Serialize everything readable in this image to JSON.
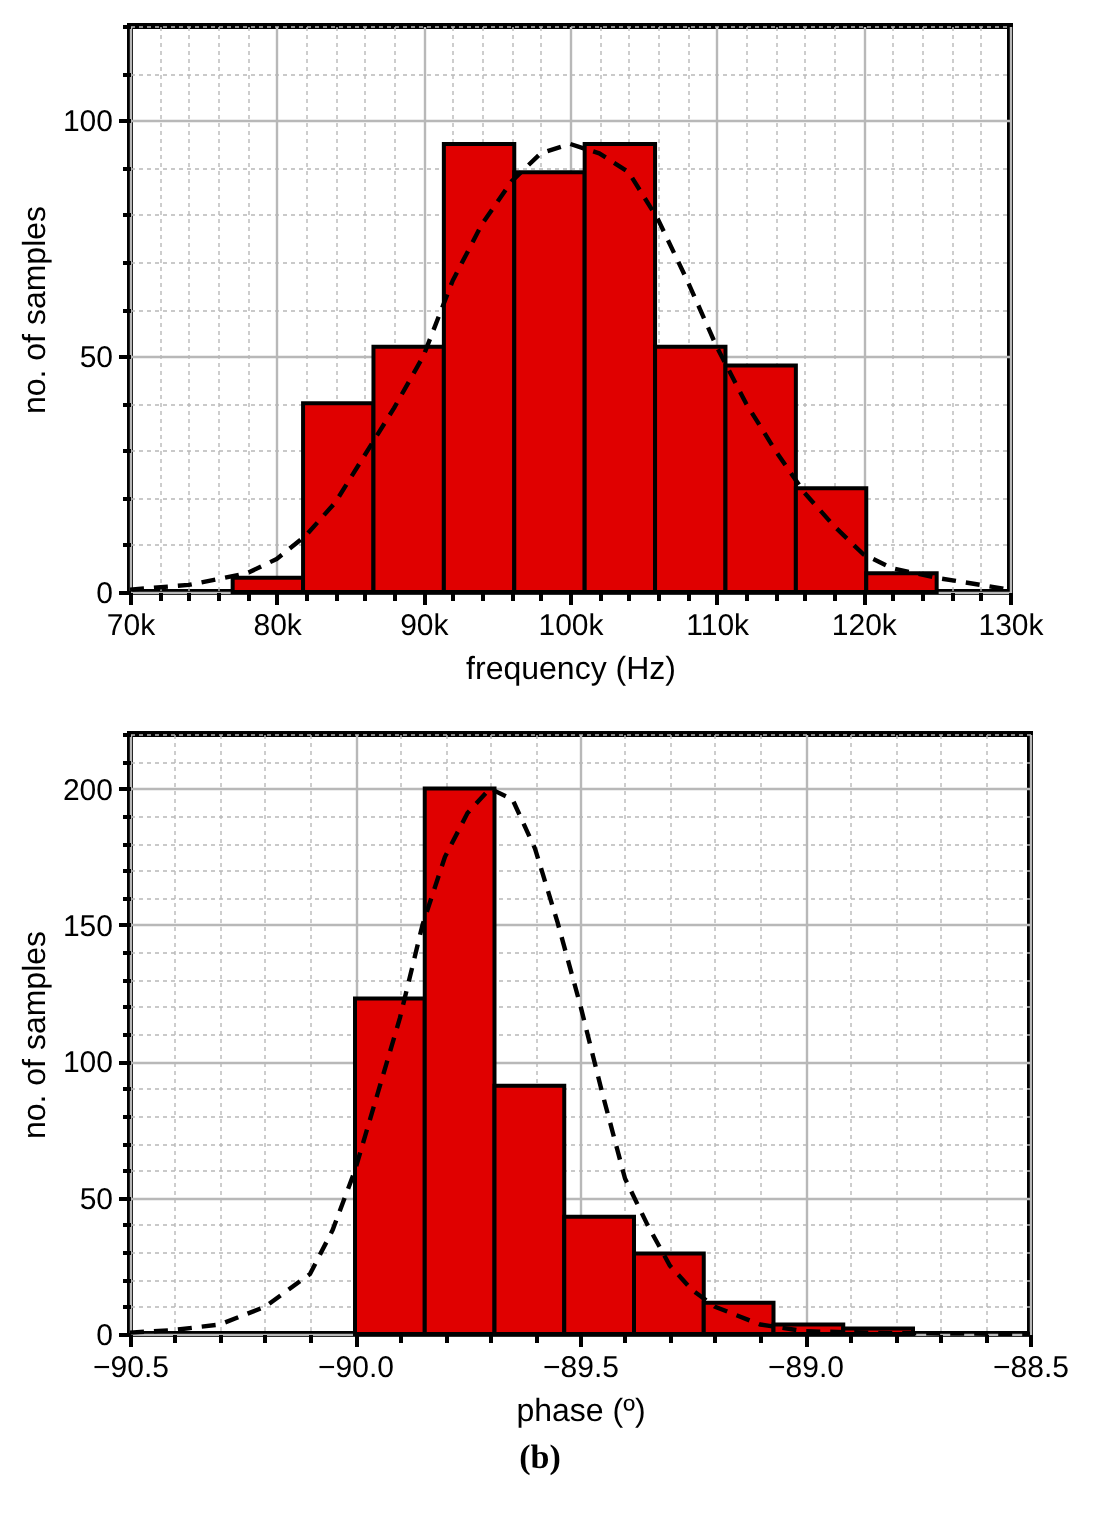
{
  "chart_data": [
    {
      "type": "histogram",
      "xlabel": "frequency (Hz)",
      "ylabel": "no. of samples",
      "xlim": [
        70000,
        130000
      ],
      "ylim": [
        0,
        120
      ],
      "grid": true,
      "xticks": [
        {
          "value": 70000,
          "label": "70k"
        },
        {
          "value": 72000,
          "label": null
        },
        {
          "value": 74000,
          "label": null
        },
        {
          "value": 76000,
          "label": null
        },
        {
          "value": 78000,
          "label": null
        },
        {
          "value": 80000,
          "label": "80k"
        },
        {
          "value": 82000,
          "label": null
        },
        {
          "value": 84000,
          "label": null
        },
        {
          "value": 86000,
          "label": null
        },
        {
          "value": 88000,
          "label": null
        },
        {
          "value": 90000,
          "label": "90k"
        },
        {
          "value": 92000,
          "label": null
        },
        {
          "value": 94000,
          "label": null
        },
        {
          "value": 96000,
          "label": null
        },
        {
          "value": 98000,
          "label": null
        },
        {
          "value": 100000,
          "label": "100k"
        },
        {
          "value": 102000,
          "label": null
        },
        {
          "value": 104000,
          "label": null
        },
        {
          "value": 106000,
          "label": null
        },
        {
          "value": 108000,
          "label": null
        },
        {
          "value": 110000,
          "label": "110k"
        },
        {
          "value": 112000,
          "label": null
        },
        {
          "value": 114000,
          "label": null
        },
        {
          "value": 116000,
          "label": null
        },
        {
          "value": 118000,
          "label": null
        },
        {
          "value": 120000,
          "label": "120k"
        },
        {
          "value": 122000,
          "label": null
        },
        {
          "value": 124000,
          "label": null
        },
        {
          "value": 126000,
          "label": null
        },
        {
          "value": 128000,
          "label": null
        },
        {
          "value": 130000,
          "label": "130k"
        }
      ],
      "yticks": [
        0,
        {
          "value": 10,
          "label": null
        },
        {
          "value": 20,
          "label": null
        },
        {
          "value": 30,
          "label": null
        },
        {
          "value": 40,
          "label": null
        },
        50,
        {
          "value": 60,
          "label": null
        },
        {
          "value": 70,
          "label": null
        },
        {
          "value": 80,
          "label": null
        },
        {
          "value": 90,
          "label": null
        },
        100,
        {
          "value": 110,
          "label": null
        },
        {
          "value": 120,
          "label": null
        }
      ],
      "series": [
        {
          "type": "histogram",
          "color": "#e00000",
          "bins": [
            77000,
            81800,
            86600,
            91400,
            96200,
            101000,
            105800,
            110600,
            115400,
            120200,
            125000
          ],
          "values": [
            3,
            40,
            52,
            95,
            89,
            95,
            52,
            48,
            22,
            4
          ]
        },
        {
          "type": "line",
          "color": "#000000",
          "line_style": "dashed",
          "x": [
            70000,
            74000,
            78000,
            80000,
            82000,
            84000,
            86000,
            88000,
            90000,
            92000,
            94000,
            96000,
            98000,
            100000,
            102000,
            104000,
            106000,
            108000,
            110000,
            112000,
            114000,
            116000,
            118000,
            120000,
            122000,
            125000,
            128000,
            130000
          ],
          "values": [
            0.5,
            1.5,
            4,
            7,
            12,
            19,
            29,
            39,
            50,
            66,
            78,
            87,
            93,
            95,
            93,
            89,
            79,
            66,
            52,
            40,
            30,
            21,
            14,
            8,
            5,
            3,
            1.5,
            0.5
          ]
        }
      ]
    },
    {
      "type": "histogram",
      "xlabel": "phase (º)",
      "ylabel": "no. of samples",
      "xlim": [
        -90.5,
        -88.5
      ],
      "ylim": [
        0,
        220
      ],
      "grid": true,
      "annotations": [
        "(b)"
      ],
      "xticks": [
        {
          "value": -90.5,
          "label": "−90.5"
        },
        {
          "value": -90.4,
          "label": null
        },
        {
          "value": -90.3,
          "label": null
        },
        {
          "value": -90.2,
          "label": null
        },
        {
          "value": -90.1,
          "label": null
        },
        {
          "value": -90.0,
          "label": "−90.0"
        },
        {
          "value": -89.9,
          "label": null
        },
        {
          "value": -89.8,
          "label": null
        },
        {
          "value": -89.7,
          "label": null
        },
        {
          "value": -89.6,
          "label": null
        },
        {
          "value": -89.5,
          "label": "−89.5"
        },
        {
          "value": -89.4,
          "label": null
        },
        {
          "value": -89.3,
          "label": null
        },
        {
          "value": -89.2,
          "label": null
        },
        {
          "value": -89.1,
          "label": null
        },
        {
          "value": -89.0,
          "label": "−89.0"
        },
        {
          "value": -88.9,
          "label": null
        },
        {
          "value": -88.8,
          "label": null
        },
        {
          "value": -88.7,
          "label": null
        },
        {
          "value": -88.6,
          "label": null
        },
        {
          "value": -88.5,
          "label": "−88.5"
        }
      ],
      "yticks": [
        0,
        {
          "value": 10,
          "label": null
        },
        {
          "value": 20,
          "label": null
        },
        {
          "value": 30,
          "label": null
        },
        {
          "value": 40,
          "label": null
        },
        50,
        {
          "value": 60,
          "label": null
        },
        {
          "value": 70,
          "label": null
        },
        {
          "value": 80,
          "label": null
        },
        {
          "value": 90,
          "label": null
        },
        100,
        {
          "value": 110,
          "label": null
        },
        {
          "value": 120,
          "label": null
        },
        {
          "value": 130,
          "label": null
        },
        {
          "value": 140,
          "label": null
        },
        150,
        {
          "value": 160,
          "label": null
        },
        {
          "value": 170,
          "label": null
        },
        {
          "value": 180,
          "label": null
        },
        {
          "value": 190,
          "label": null
        },
        200,
        {
          "value": 210,
          "label": null
        },
        {
          "value": 220,
          "label": null
        }
      ],
      "series": [
        {
          "type": "histogram",
          "color": "#e00000",
          "bins": [
            -90.0,
            -89.845,
            -89.69,
            -89.535,
            -89.38,
            -89.225,
            -89.07,
            -88.915,
            -88.76
          ],
          "values": [
            123,
            200,
            91,
            43,
            29.5,
            11.5,
            3.5,
            2
          ]
        },
        {
          "type": "line",
          "color": "#000000",
          "line_style": "dashed",
          "x": [
            -90.5,
            -90.4,
            -90.3,
            -90.2,
            -90.1,
            -90.05,
            -90.0,
            -89.95,
            -89.9,
            -89.85,
            -89.8,
            -89.75,
            -89.7,
            -89.65,
            -89.6,
            -89.55,
            -89.5,
            -89.45,
            -89.4,
            -89.35,
            -89.3,
            -89.25,
            -89.2,
            -89.1,
            -89.0,
            -88.8,
            -88.5
          ],
          "values": [
            0.5,
            1.5,
            3.5,
            10,
            22,
            38,
            60,
            88,
            116,
            150,
            175,
            191,
            200,
            196,
            178,
            151,
            121,
            88,
            57,
            40,
            25,
            16,
            10,
            3.5,
            1,
            0.3,
            0
          ]
        }
      ]
    }
  ]
}
